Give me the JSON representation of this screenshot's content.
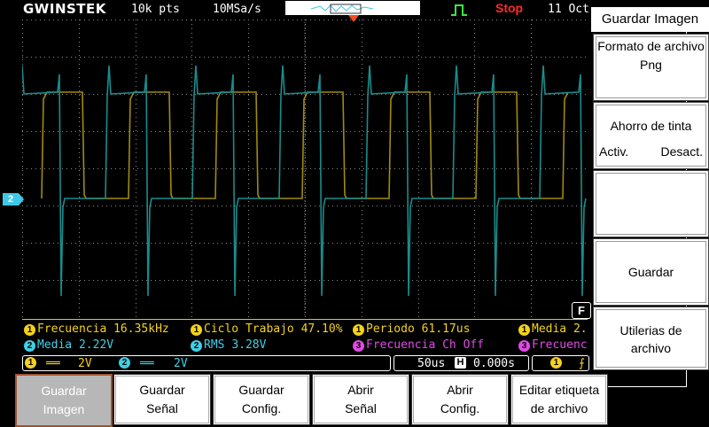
{
  "header": {
    "logo": "GWINSTEK",
    "record_length": "10k pts",
    "sample_rate": "10MSa/s",
    "run_state": "Stop",
    "date": "11 Oct"
  },
  "channel2_marker": "2",
  "measurements": {
    "row1": [
      {
        "ch": "1",
        "label": "Frecuencia",
        "value": "16.35kHz",
        "color": "#f4d21a"
      },
      {
        "ch": "1",
        "label": "Ciclo Trabajo",
        "value": "47.10%",
        "color": "#f4d21a"
      },
      {
        "ch": "1",
        "label": "Periodo",
        "value": "61.17us",
        "color": "#f4d21a"
      },
      {
        "ch": "1",
        "label": "Media",
        "value": "2.",
        "color": "#f4d21a"
      }
    ],
    "row2": [
      {
        "ch": "2",
        "label": "Media",
        "value": "2.22V",
        "color": "#3fd0e6"
      },
      {
        "ch": "2",
        "label": "RMS",
        "value": "3.28V",
        "color": "#3fd0e6"
      },
      {
        "ch": "3",
        "label": "Frecuencia Ch Off",
        "value": "",
        "color": "#e24ae6"
      },
      {
        "ch": "3",
        "label": "Frecuenc",
        "value": "",
        "color": "#e24ae6"
      }
    ]
  },
  "channel_bar": {
    "ch1_num": "1",
    "ch1_scale": "2V",
    "ch2_num": "2",
    "ch2_scale": "2V"
  },
  "timebase": {
    "scale": "50us",
    "h_label": "H",
    "delay": "0.000s"
  },
  "trigger_bar": {
    "ch": "1",
    "glyph": "⨍"
  },
  "f_key": "F",
  "side_menu": {
    "title": "Guardar Imagen",
    "format_label": "Formato de archivo",
    "format_value": "Png",
    "ink_saver_label": "Ahorro de tinta",
    "ink_on": "Activ.",
    "ink_off": "Desact.",
    "empty": "",
    "save": "Guardar",
    "file_utilities": "Utilerias de archivo"
  },
  "bottom_menu": [
    {
      "line1": "Guardar",
      "line2": "Imagen",
      "selected": true
    },
    {
      "line1": "Guardar",
      "line2": "Señal",
      "selected": false
    },
    {
      "line1": "Guardar",
      "line2": "Config.",
      "selected": false
    },
    {
      "line1": "Abrir",
      "line2": "Señal",
      "selected": false
    },
    {
      "line1": "Abrir",
      "line2": "Config.",
      "selected": false
    },
    {
      "line1": "Editar etiqueta",
      "line2": "de archivo",
      "selected": false
    }
  ],
  "colors": {
    "ch1": "#a08a10",
    "ch2": "#1a8c8c",
    "grid": "#8a8a8a",
    "accent_yellow": "#f4d21a",
    "accent_cyan": "#3fd0e6",
    "accent_magenta": "#e24ae6",
    "stop_red": "#ff2a2a"
  }
}
